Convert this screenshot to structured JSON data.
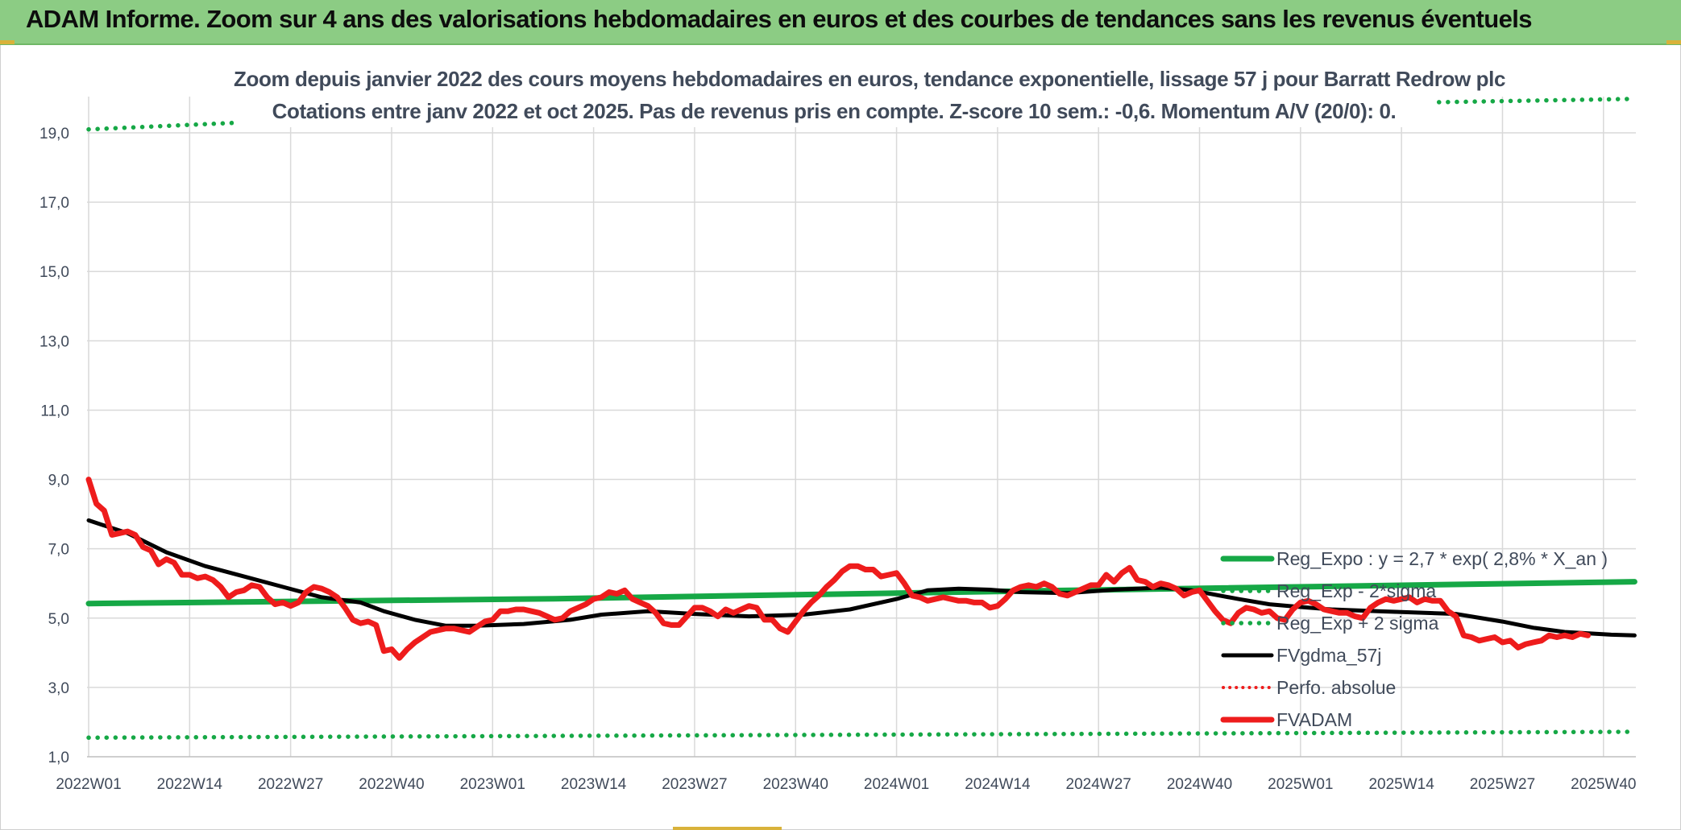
{
  "header": {
    "title": "ADAM Informe. Zoom sur 4 ans des valorisations hebdomadaires en euros et des courbes de tendances sans les revenus éventuels"
  },
  "chart_data": {
    "type": "line",
    "title_line1": "Zoom depuis janvier 2022 des cours moyens hebdomadaires en euros, tendance exponentielle, lissage 57 j pour Barratt Redrow plc",
    "title_line2": "Cotations entre janv 2022 et oct 2025. Pas de revenus pris en compte. Z-score 10 sem.: -0,6. Momentum A/V (20/0): 0.",
    "ylim": [
      1,
      19.7
    ],
    "yticks": [
      "1,0",
      "3,0",
      "5,0",
      "7,0",
      "9,0",
      "11,0",
      "13,0",
      "15,0",
      "17,0",
      "19,0"
    ],
    "ytick_values": [
      1,
      3,
      5,
      7,
      9,
      11,
      13,
      15,
      17,
      19
    ],
    "xticks": [
      "2022W01",
      "2022W14",
      "2022W27",
      "2022W40",
      "2023W01",
      "2023W14",
      "2023W27",
      "2023W40",
      "2024W01",
      "2024W14",
      "2024W27",
      "2024W40",
      "2025W01",
      "2025W14",
      "2025W27",
      "2025W40"
    ],
    "xtick_weeks": [
      0,
      13,
      26,
      39,
      52,
      65,
      78,
      91,
      104,
      117,
      130,
      143,
      156,
      169,
      182,
      195
    ],
    "n_weeks": 200,
    "grid": true,
    "legend_position": "right",
    "colors": {
      "green": "#16a846",
      "black": "#000000",
      "red": "#ee1c1c",
      "grid": "#d9d9d9",
      "text": "#404a5a"
    },
    "series": [
      {
        "name": "Reg_Expo : y = 2,7 * exp( 2,8% *  X_an )",
        "style": "solid-green",
        "points": [
          [
            0,
            5.42
          ],
          [
            60,
            5.56
          ],
          [
            120,
            5.78
          ],
          [
            199,
            6.05
          ]
        ]
      },
      {
        "name": "Reg_Exp - 2*sigma",
        "style": "dotted-green",
        "points": [
          [
            0,
            1.55
          ],
          [
            199,
            1.72
          ]
        ]
      },
      {
        "name": "Reg_Exp + 2 sigma",
        "style": "dotted-green",
        "points": [
          [
            0,
            19.1
          ],
          [
            20,
            19.3
          ],
          [
            199,
            19.98
          ]
        ]
      },
      {
        "name": "FVgdma_57j",
        "style": "solid-black",
        "points": [
          [
            0,
            7.82
          ],
          [
            5,
            7.45
          ],
          [
            10,
            6.9
          ],
          [
            15,
            6.5
          ],
          [
            20,
            6.2
          ],
          [
            25,
            5.9
          ],
          [
            30,
            5.6
          ],
          [
            35,
            5.45
          ],
          [
            38,
            5.2
          ],
          [
            42,
            4.95
          ],
          [
            46,
            4.78
          ],
          [
            50,
            4.78
          ],
          [
            56,
            4.83
          ],
          [
            62,
            4.95
          ],
          [
            66,
            5.1
          ],
          [
            72,
            5.2
          ],
          [
            78,
            5.12
          ],
          [
            85,
            5.05
          ],
          [
            92,
            5.1
          ],
          [
            98,
            5.25
          ],
          [
            104,
            5.55
          ],
          [
            108,
            5.8
          ],
          [
            112,
            5.85
          ],
          [
            116,
            5.82
          ],
          [
            120,
            5.75
          ],
          [
            126,
            5.72
          ],
          [
            132,
            5.82
          ],
          [
            138,
            5.88
          ],
          [
            142,
            5.8
          ],
          [
            148,
            5.55
          ],
          [
            152,
            5.4
          ],
          [
            156,
            5.32
          ],
          [
            160,
            5.25
          ],
          [
            166,
            5.2
          ],
          [
            172,
            5.15
          ],
          [
            176,
            5.12
          ],
          [
            182,
            4.9
          ],
          [
            186,
            4.72
          ],
          [
            190,
            4.6
          ],
          [
            196,
            4.52
          ],
          [
            199,
            4.5
          ]
        ]
      },
      {
        "name": "Perfo. absolue",
        "style": "dotted-red",
        "points": []
      },
      {
        "name": "FVADAM",
        "style": "solid-red",
        "points": [
          [
            0,
            9.0
          ],
          [
            1,
            8.3
          ],
          [
            2,
            8.1
          ],
          [
            3,
            7.4
          ],
          [
            4,
            7.45
          ],
          [
            5,
            7.5
          ],
          [
            6,
            7.4
          ],
          [
            7,
            7.05
          ],
          [
            8,
            6.95
          ],
          [
            9,
            6.55
          ],
          [
            10,
            6.7
          ],
          [
            11,
            6.6
          ],
          [
            12,
            6.25
          ],
          [
            13,
            6.25
          ],
          [
            14,
            6.15
          ],
          [
            15,
            6.2
          ],
          [
            16,
            6.1
          ],
          [
            17,
            5.9
          ],
          [
            18,
            5.6
          ],
          [
            19,
            5.75
          ],
          [
            20,
            5.8
          ],
          [
            21,
            5.95
          ],
          [
            22,
            5.9
          ],
          [
            23,
            5.6
          ],
          [
            24,
            5.4
          ],
          [
            25,
            5.45
          ],
          [
            26,
            5.35
          ],
          [
            27,
            5.45
          ],
          [
            28,
            5.75
          ],
          [
            29,
            5.9
          ],
          [
            30,
            5.85
          ],
          [
            31,
            5.75
          ],
          [
            32,
            5.6
          ],
          [
            33,
            5.3
          ],
          [
            34,
            4.95
          ],
          [
            35,
            4.85
          ],
          [
            36,
            4.9
          ],
          [
            37,
            4.8
          ],
          [
            38,
            4.05
          ],
          [
            39,
            4.1
          ],
          [
            40,
            3.85
          ],
          [
            41,
            4.1
          ],
          [
            42,
            4.3
          ],
          [
            43,
            4.45
          ],
          [
            44,
            4.6
          ],
          [
            45,
            4.65
          ],
          [
            46,
            4.7
          ],
          [
            47,
            4.7
          ],
          [
            48,
            4.65
          ],
          [
            49,
            4.6
          ],
          [
            50,
            4.75
          ],
          [
            51,
            4.9
          ],
          [
            52,
            4.95
          ],
          [
            53,
            5.2
          ],
          [
            54,
            5.2
          ],
          [
            55,
            5.25
          ],
          [
            56,
            5.25
          ],
          [
            57,
            5.2
          ],
          [
            58,
            5.15
          ],
          [
            59,
            5.05
          ],
          [
            60,
            4.95
          ],
          [
            61,
            5.0
          ],
          [
            62,
            5.2
          ],
          [
            63,
            5.3
          ],
          [
            64,
            5.4
          ],
          [
            65,
            5.55
          ],
          [
            66,
            5.6
          ],
          [
            67,
            5.75
          ],
          [
            68,
            5.7
          ],
          [
            69,
            5.8
          ],
          [
            70,
            5.55
          ],
          [
            71,
            5.45
          ],
          [
            72,
            5.35
          ],
          [
            73,
            5.15
          ],
          [
            74,
            4.85
          ],
          [
            75,
            4.8
          ],
          [
            76,
            4.8
          ],
          [
            77,
            5.05
          ],
          [
            78,
            5.3
          ],
          [
            79,
            5.3
          ],
          [
            80,
            5.2
          ],
          [
            81,
            5.05
          ],
          [
            82,
            5.25
          ],
          [
            83,
            5.15
          ],
          [
            84,
            5.25
          ],
          [
            85,
            5.35
          ],
          [
            86,
            5.3
          ],
          [
            87,
            4.95
          ],
          [
            88,
            4.95
          ],
          [
            89,
            4.7
          ],
          [
            90,
            4.6
          ],
          [
            91,
            4.9
          ],
          [
            92,
            5.2
          ],
          [
            93,
            5.45
          ],
          [
            94,
            5.65
          ],
          [
            95,
            5.9
          ],
          [
            96,
            6.1
          ],
          [
            97,
            6.35
          ],
          [
            98,
            6.5
          ],
          [
            99,
            6.5
          ],
          [
            100,
            6.4
          ],
          [
            101,
            6.4
          ],
          [
            102,
            6.2
          ],
          [
            103,
            6.25
          ],
          [
            104,
            6.3
          ],
          [
            105,
            6.0
          ],
          [
            106,
            5.65
          ],
          [
            107,
            5.6
          ],
          [
            108,
            5.5
          ],
          [
            109,
            5.55
          ],
          [
            110,
            5.6
          ],
          [
            111,
            5.55
          ],
          [
            112,
            5.5
          ],
          [
            113,
            5.5
          ],
          [
            114,
            5.45
          ],
          [
            115,
            5.45
          ],
          [
            116,
            5.3
          ],
          [
            117,
            5.35
          ],
          [
            118,
            5.55
          ],
          [
            119,
            5.8
          ],
          [
            120,
            5.9
          ],
          [
            121,
            5.95
          ],
          [
            122,
            5.9
          ],
          [
            123,
            6.0
          ],
          [
            124,
            5.9
          ],
          [
            125,
            5.7
          ],
          [
            126,
            5.65
          ],
          [
            127,
            5.75
          ],
          [
            128,
            5.85
          ],
          [
            129,
            5.95
          ],
          [
            130,
            5.95
          ],
          [
            131,
            6.25
          ],
          [
            132,
            6.05
          ],
          [
            133,
            6.3
          ],
          [
            134,
            6.45
          ],
          [
            135,
            6.1
          ],
          [
            136,
            6.05
          ],
          [
            137,
            5.9
          ],
          [
            138,
            6.0
          ],
          [
            139,
            5.95
          ],
          [
            140,
            5.85
          ],
          [
            141,
            5.65
          ],
          [
            142,
            5.75
          ],
          [
            143,
            5.8
          ],
          [
            144,
            5.5
          ],
          [
            145,
            5.2
          ],
          [
            146,
            4.95
          ],
          [
            147,
            4.85
          ],
          [
            148,
            5.15
          ],
          [
            149,
            5.3
          ],
          [
            150,
            5.25
          ],
          [
            151,
            5.15
          ],
          [
            152,
            5.2
          ],
          [
            153,
            5.0
          ],
          [
            154,
            4.95
          ],
          [
            155,
            5.25
          ],
          [
            156,
            5.45
          ],
          [
            157,
            5.5
          ],
          [
            158,
            5.4
          ],
          [
            159,
            5.25
          ],
          [
            160,
            5.2
          ],
          [
            161,
            5.15
          ],
          [
            162,
            5.15
          ],
          [
            163,
            5.05
          ],
          [
            164,
            5.0
          ],
          [
            165,
            5.3
          ],
          [
            166,
            5.45
          ],
          [
            167,
            5.55
          ],
          [
            168,
            5.5
          ],
          [
            169,
            5.55
          ],
          [
            170,
            5.6
          ],
          [
            171,
            5.45
          ],
          [
            172,
            5.55
          ],
          [
            173,
            5.5
          ],
          [
            174,
            5.5
          ],
          [
            175,
            5.2
          ],
          [
            176,
            5.05
          ],
          [
            177,
            4.5
          ],
          [
            178,
            4.45
          ],
          [
            179,
            4.35
          ],
          [
            180,
            4.4
          ],
          [
            181,
            4.45
          ],
          [
            182,
            4.3
          ],
          [
            183,
            4.35
          ],
          [
            184,
            4.15
          ],
          [
            185,
            4.25
          ],
          [
            186,
            4.3
          ],
          [
            187,
            4.35
          ],
          [
            188,
            4.5
          ],
          [
            189,
            4.45
          ],
          [
            190,
            4.5
          ],
          [
            191,
            4.45
          ],
          [
            192,
            4.55
          ],
          [
            193,
            4.5
          ]
        ]
      }
    ]
  }
}
